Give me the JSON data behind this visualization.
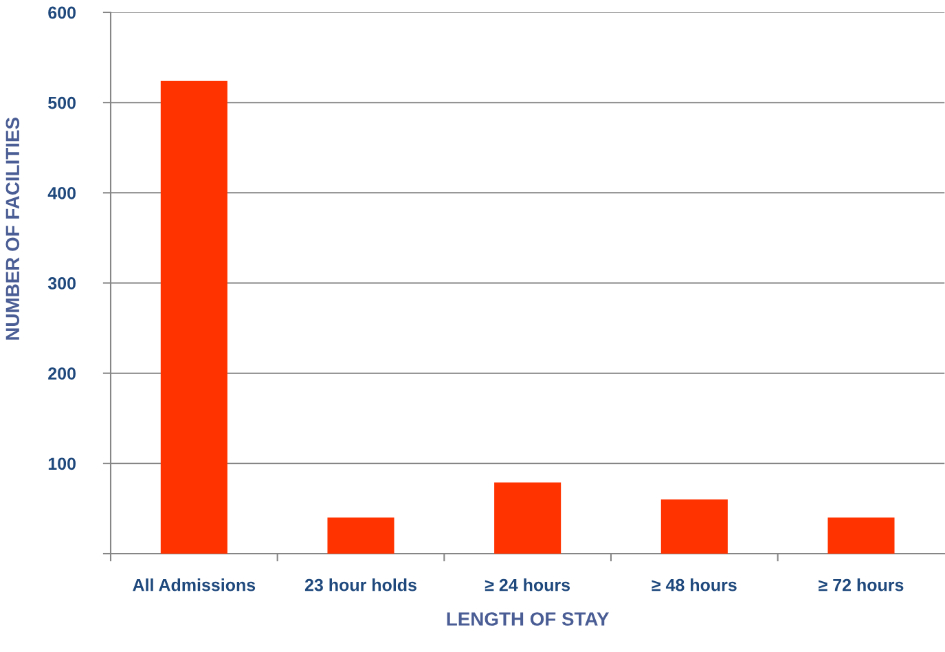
{
  "chart_data": {
    "type": "bar",
    "xlabel": "LENGTH OF STAY",
    "ylabel": "NUMBER OF FACILITIES",
    "categories": [
      "All Admissions",
      "23 hour holds",
      "≥ 24 hours",
      "≥ 48 hours",
      "≥ 72 hours"
    ],
    "values": [
      524,
      40,
      79,
      60,
      40
    ],
    "color": "#ff3300",
    "ylim": [
      0,
      600
    ],
    "yticks": [
      {
        "value": 0,
        "label": null
      },
      100,
      200,
      300,
      400,
      500,
      600
    ],
    "grid": "y",
    "legend": false
  }
}
